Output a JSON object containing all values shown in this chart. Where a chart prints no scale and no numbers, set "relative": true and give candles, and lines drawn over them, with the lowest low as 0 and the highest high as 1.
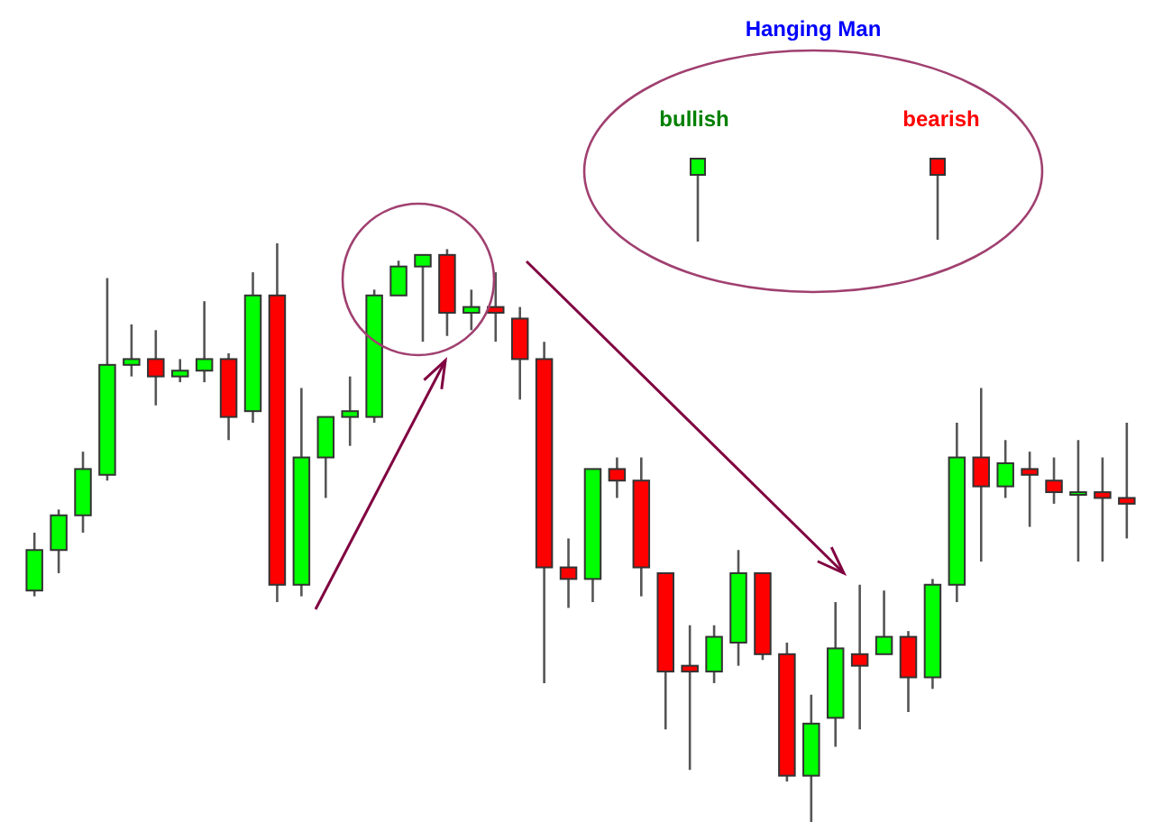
{
  "chart_data": {
    "type": "candlestick",
    "relative": true,
    "title": "Hanging Man",
    "annotations": [
      "bullish",
      "bearish"
    ],
    "categories": [
      null,
      null,
      null,
      null,
      null,
      null,
      null,
      null,
      null,
      null,
      null,
      null,
      null,
      null,
      null,
      null,
      null,
      null,
      null,
      null,
      null,
      null,
      null,
      null,
      null,
      null,
      null,
      null,
      null,
      null,
      null,
      null,
      null,
      null,
      null,
      null,
      null,
      null,
      null,
      null,
      null,
      null,
      null,
      null,
      null,
      null
    ],
    "ohlc": [
      [
        0.4,
        0.5,
        0.39,
        0.47
      ],
      [
        0.47,
        0.54,
        0.43,
        0.53
      ],
      [
        0.53,
        0.64,
        0.5,
        0.61
      ],
      [
        0.6,
        0.94,
        0.59,
        0.79
      ],
      [
        0.79,
        0.86,
        0.77,
        0.8
      ],
      [
        0.8,
        0.85,
        0.72,
        0.77
      ],
      [
        0.77,
        0.8,
        0.76,
        0.78
      ],
      [
        0.78,
        0.9,
        0.76,
        0.8
      ],
      [
        0.8,
        0.81,
        0.66,
        0.7
      ],
      [
        0.71,
        0.95,
        0.69,
        0.91
      ],
      [
        0.91,
        1.0,
        0.38,
        0.41
      ],
      [
        0.41,
        0.75,
        0.39,
        0.63
      ],
      [
        0.63,
        0.7,
        0.56,
        0.7
      ],
      [
        0.7,
        0.77,
        0.65,
        0.71
      ],
      [
        0.7,
        0.92,
        0.69,
        0.91
      ],
      [
        0.91,
        0.97,
        0.91,
        0.96
      ],
      [
        0.96,
        0.98,
        0.83,
        0.98
      ],
      [
        0.98,
        0.99,
        0.84,
        0.88
      ],
      [
        0.88,
        0.92,
        0.85,
        0.89
      ],
      [
        0.89,
        0.95,
        0.83,
        0.88
      ],
      [
        0.87,
        0.89,
        0.73,
        0.8
      ],
      [
        0.8,
        0.83,
        0.24,
        0.44
      ],
      [
        0.44,
        0.49,
        0.37,
        0.42
      ],
      [
        0.42,
        0.61,
        0.38,
        0.61
      ],
      [
        0.61,
        0.63,
        0.56,
        0.59
      ],
      [
        0.59,
        0.63,
        0.39,
        0.44
      ],
      [
        0.43,
        0.43,
        0.16,
        0.26
      ],
      [
        0.27,
        0.34,
        0.09,
        0.26
      ],
      [
        0.26,
        0.34,
        0.24,
        0.32
      ],
      [
        0.31,
        0.47,
        0.27,
        0.43
      ],
      [
        0.43,
        0.43,
        0.28,
        0.29
      ],
      [
        0.29,
        0.31,
        0.07,
        0.08
      ],
      [
        0.08,
        0.22,
        0,
        0.17
      ],
      [
        0.18,
        0.38,
        0.13,
        0.3
      ],
      [
        0.29,
        0.41,
        0.16,
        0.27
      ],
      [
        0.29,
        0.4,
        0.29,
        0.32
      ],
      [
        0.32,
        0.33,
        0.19,
        0.25
      ],
      [
        0.25,
        0.42,
        0.23,
        0.41
      ],
      [
        0.41,
        0.69,
        0.38,
        0.63
      ],
      [
        0.63,
        0.75,
        0.45,
        0.58
      ],
      [
        0.58,
        0.66,
        0.56,
        0.62
      ],
      [
        0.61,
        0.64,
        0.51,
        0.6
      ],
      [
        0.59,
        0.63,
        0.55,
        0.57
      ],
      [
        0.57,
        0.66,
        0.45,
        0.57
      ],
      [
        0.57,
        0.63,
        0.45,
        0.56
      ],
      [
        0.56,
        0.69,
        0.49,
        0.55
      ]
    ],
    "colors": [
      "#00ff00",
      "#00ff00",
      "#00ff00",
      "#00ff00",
      "#00ff00",
      "#ff0000",
      "#00ff00",
      "#00ff00",
      "#ff0000",
      "#00ff00",
      "#ff0000",
      "#00ff00",
      "#00ff00",
      "#00ff00",
      "#00ff00",
      "#00ff00",
      "#00ff00",
      "#ff0000",
      "#00ff00",
      "#ff0000",
      "#ff0000",
      "#ff0000",
      "#ff0000",
      "#00ff00",
      "#ff0000",
      "#ff0000",
      "#ff0000",
      "#ff0000",
      "#00ff00",
      "#00ff00",
      "#ff0000",
      "#ff0000",
      "#00ff00",
      "#00ff00",
      "#ff0000",
      "#00ff00",
      "#ff0000",
      "#00ff00",
      "#00ff00",
      "#ff0000",
      "#00ff00",
      "#ff0000",
      "#ff0000",
      "#00ff00",
      "#ff0000",
      "#ff0000"
    ]
  }
}
